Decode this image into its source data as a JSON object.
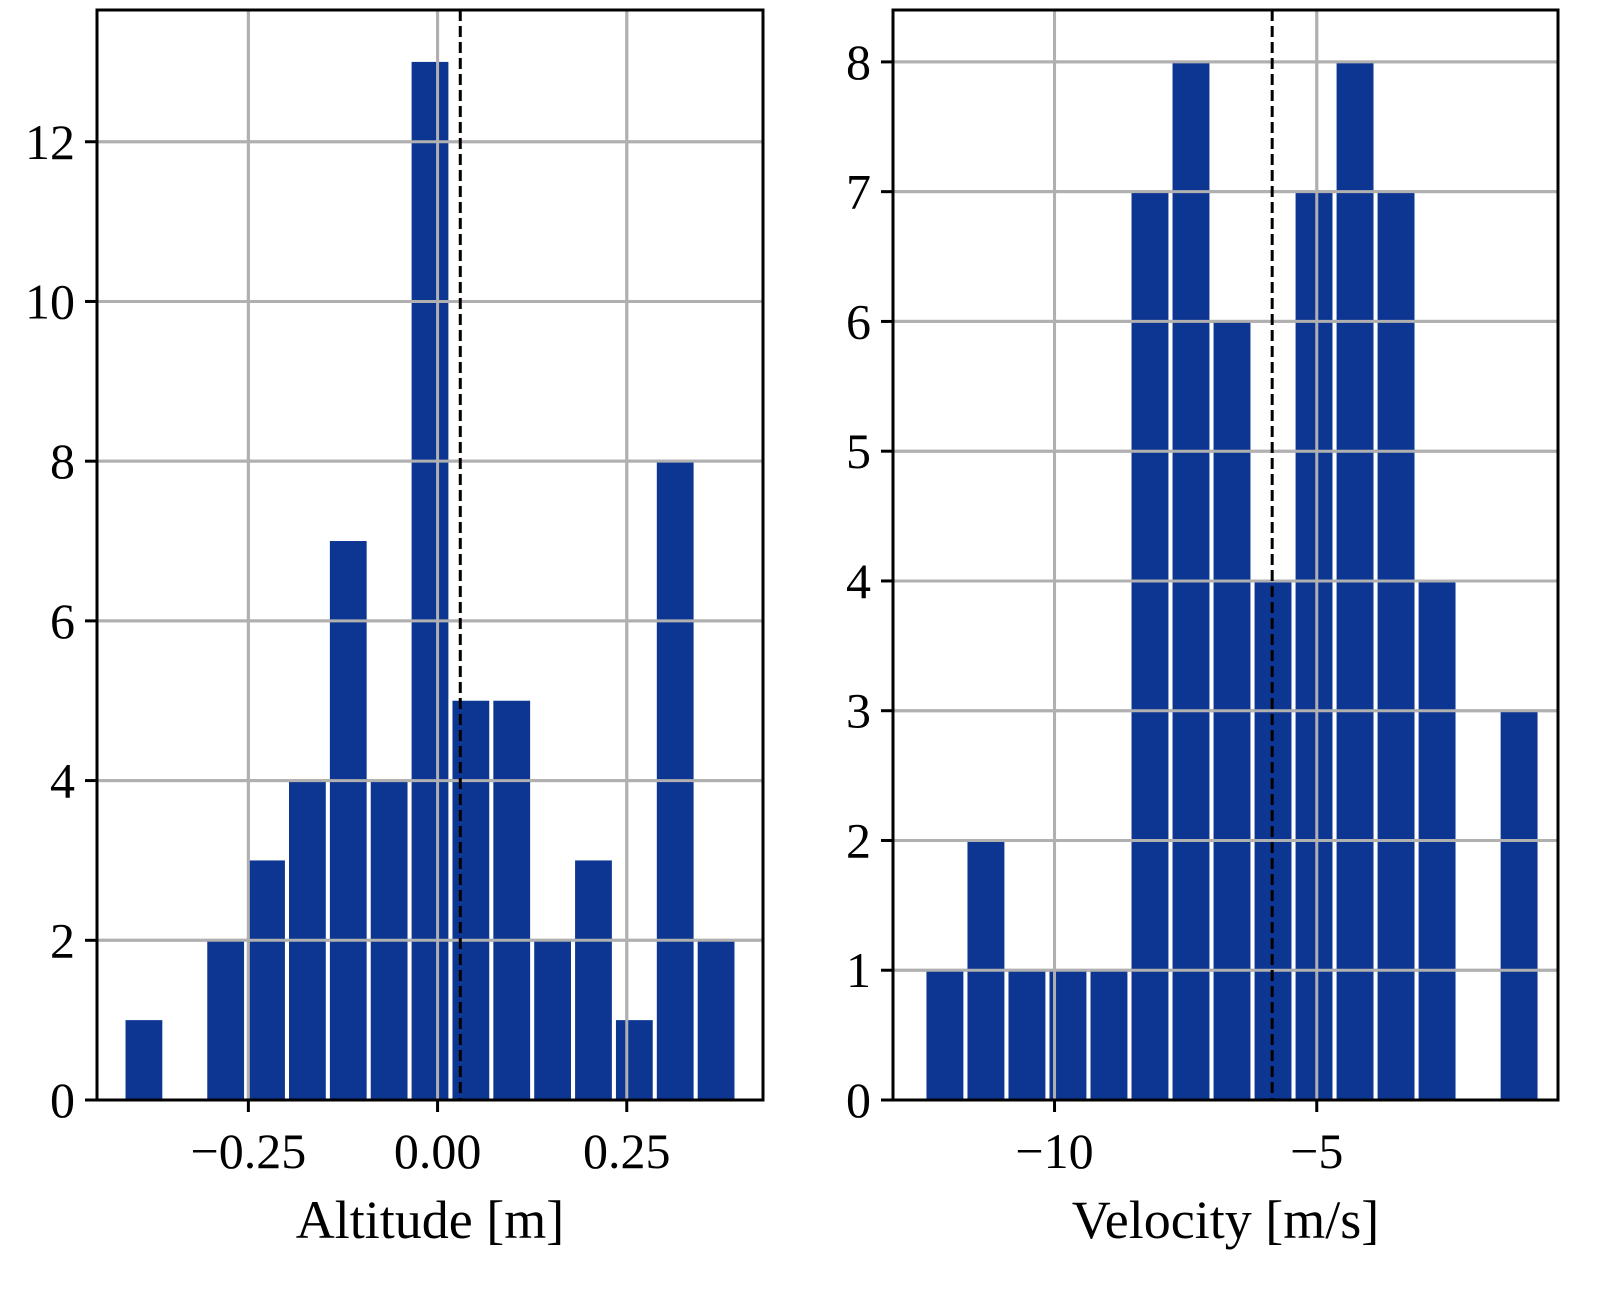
{
  "chart_data": [
    {
      "type": "bar",
      "subtype": "histogram",
      "xlabel": "Altitude [m]",
      "ylabel": "",
      "title": "",
      "xlim": [
        -0.45,
        0.43
      ],
      "ylim": [
        0,
        13.65
      ],
      "grid": true,
      "color": "#0d3592",
      "bin_width": 0.054,
      "bins": [
        {
          "x": -0.388,
          "count": 1
        },
        {
          "x": -0.28,
          "count": 2
        },
        {
          "x": -0.226,
          "count": 3
        },
        {
          "x": -0.172,
          "count": 4
        },
        {
          "x": -0.118,
          "count": 7
        },
        {
          "x": -0.064,
          "count": 4
        },
        {
          "x": -0.01,
          "count": 13
        },
        {
          "x": 0.044,
          "count": 5
        },
        {
          "x": 0.098,
          "count": 5
        },
        {
          "x": 0.152,
          "count": 2
        },
        {
          "x": 0.206,
          "count": 3
        },
        {
          "x": 0.26,
          "count": 1
        },
        {
          "x": 0.314,
          "count": 8
        },
        {
          "x": 0.368,
          "count": 2
        }
      ],
      "mean_line": 0.03,
      "xticks": [
        {
          "value": -0.25,
          "label": "−0.25"
        },
        {
          "value": 0.0,
          "label": "0.00"
        },
        {
          "value": 0.25,
          "label": "0.25"
        }
      ],
      "yticks": [
        {
          "value": 0,
          "label": "0"
        },
        {
          "value": 2,
          "label": "2"
        },
        {
          "value": 4,
          "label": "4"
        },
        {
          "value": 6,
          "label": "6"
        },
        {
          "value": 8,
          "label": "8"
        },
        {
          "value": 10,
          "label": "10"
        },
        {
          "value": 12,
          "label": "12"
        }
      ]
    },
    {
      "type": "bar",
      "subtype": "histogram",
      "xlabel": "Velocity [m/s]",
      "ylabel": "",
      "title": "",
      "xlim": [
        -13.08,
        -0.4
      ],
      "ylim": [
        0,
        8.4
      ],
      "grid": true,
      "color": "#0d3592",
      "bin_width": 0.782,
      "bins": [
        {
          "x": -12.09,
          "count": 1
        },
        {
          "x": -11.308,
          "count": 2
        },
        {
          "x": -10.526,
          "count": 1
        },
        {
          "x": -9.744,
          "count": 1
        },
        {
          "x": -8.962,
          "count": 1
        },
        {
          "x": -8.18,
          "count": 7
        },
        {
          "x": -7.398,
          "count": 8
        },
        {
          "x": -6.616,
          "count": 6
        },
        {
          "x": -5.834,
          "count": 4
        },
        {
          "x": -5.052,
          "count": 7
        },
        {
          "x": -4.27,
          "count": 8
        },
        {
          "x": -3.488,
          "count": 7
        },
        {
          "x": -2.706,
          "count": 4
        },
        {
          "x": -1.924,
          "count": 0
        },
        {
          "x": -1.142,
          "count": 3
        }
      ],
      "mean_line": -5.85,
      "xticks": [
        {
          "value": -10,
          "label": "−10"
        },
        {
          "value": -5,
          "label": "−5"
        }
      ],
      "yticks": [
        {
          "value": 0,
          "label": "0"
        },
        {
          "value": 1,
          "label": "1"
        },
        {
          "value": 2,
          "label": "2"
        },
        {
          "value": 3,
          "label": "3"
        },
        {
          "value": 4,
          "label": "4"
        },
        {
          "value": 5,
          "label": "5"
        },
        {
          "value": 6,
          "label": "6"
        },
        {
          "value": 7,
          "label": "7"
        },
        {
          "value": 8,
          "label": "8"
        }
      ]
    }
  ]
}
